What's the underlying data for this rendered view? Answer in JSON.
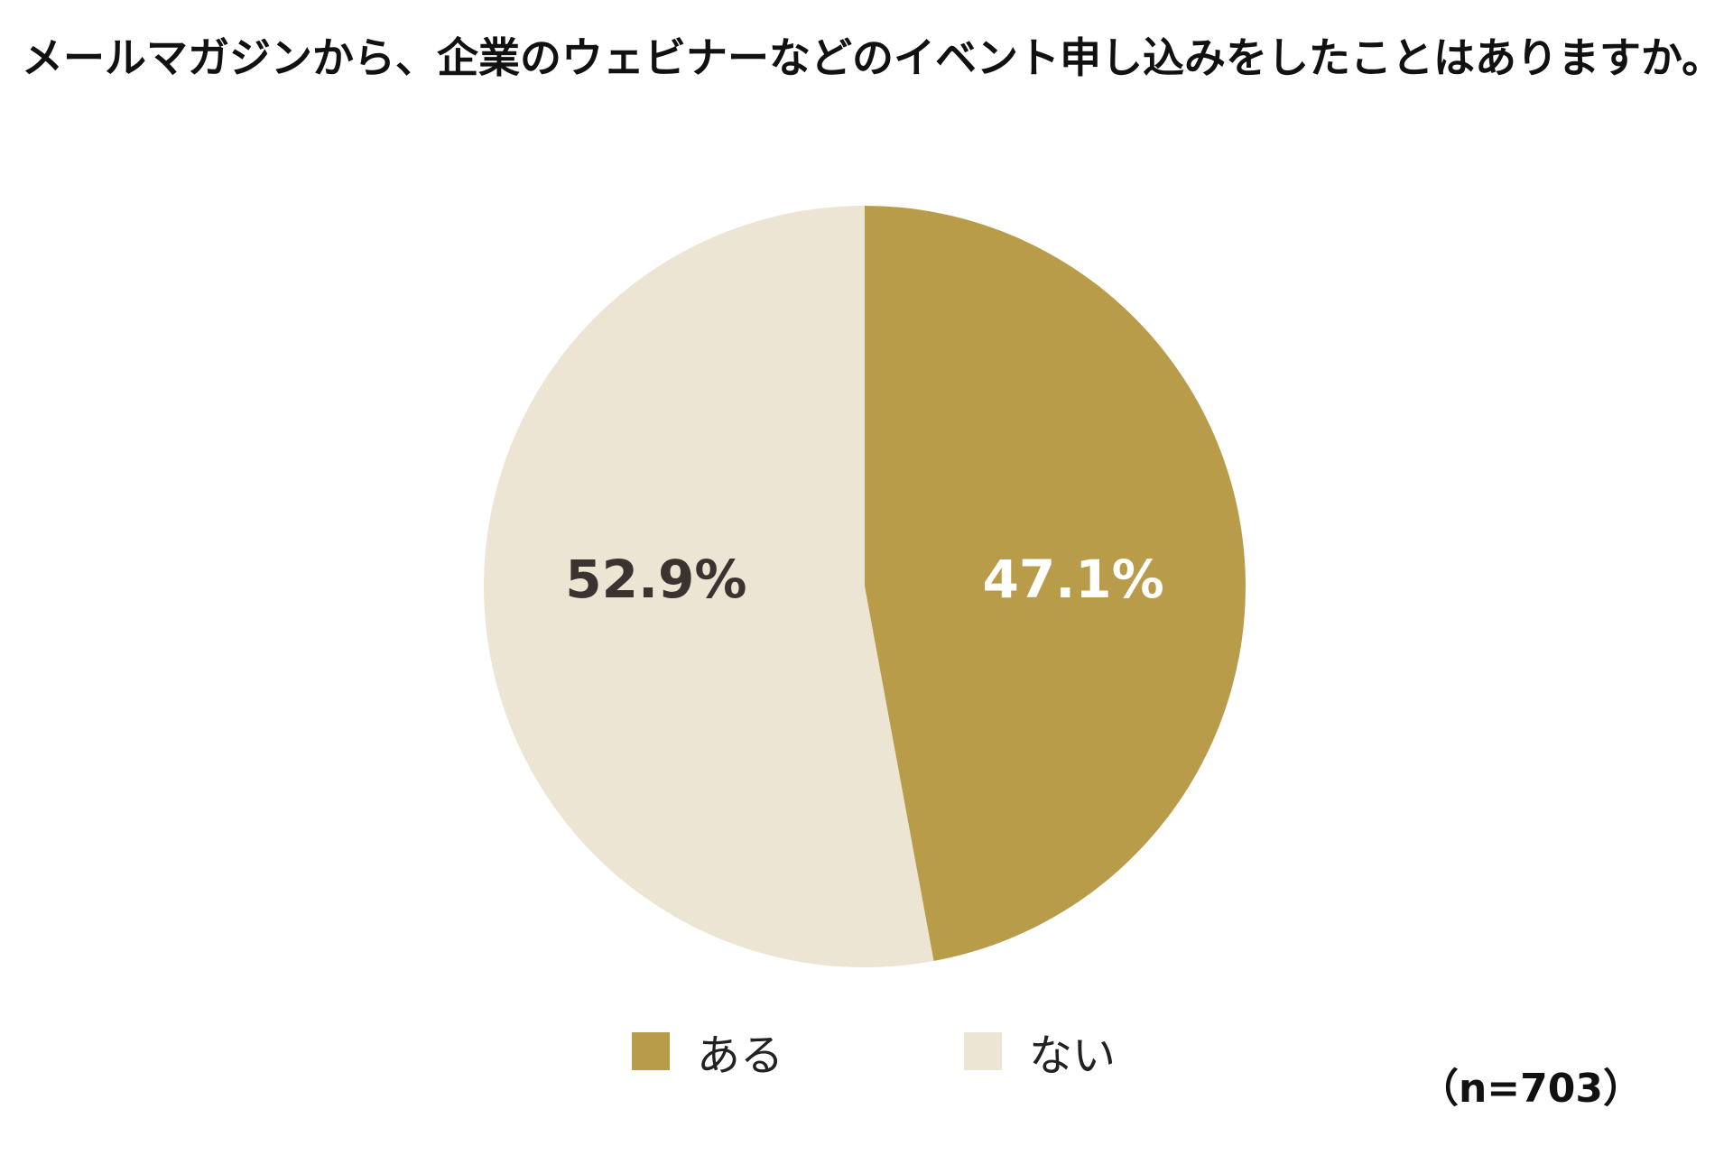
{
  "chart_data": {
    "type": "pie",
    "title": "メールマガジンから、企業のウェビナーなどのイベント申し込みをしたことはありますか。",
    "slices": [
      {
        "name": "ある",
        "value": 47.1,
        "label": "47.1%",
        "color": "#b99c4a",
        "label_color": "#ffffff"
      },
      {
        "name": "ない",
        "value": 52.9,
        "label": "52.9%",
        "color": "#ece5d3",
        "label_color": "#3a3330"
      }
    ],
    "start": "12 o'clock",
    "direction": "clockwise",
    "legend_position": "bottom",
    "sample_size": "（n=703）"
  }
}
